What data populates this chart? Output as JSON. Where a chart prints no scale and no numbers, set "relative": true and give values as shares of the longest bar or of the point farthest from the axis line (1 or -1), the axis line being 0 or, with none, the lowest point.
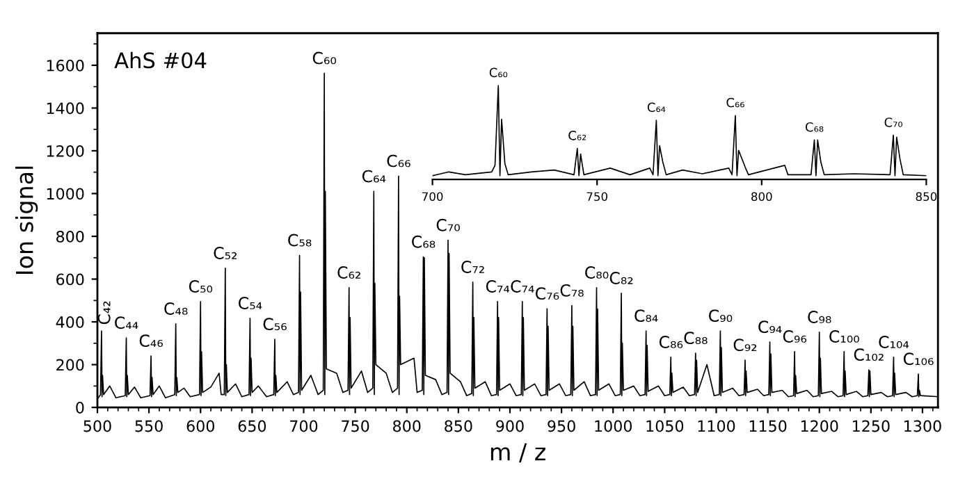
{
  "chart_data": [
    {
      "type": "line",
      "xlabel": "m / z",
      "ylabel": "Ion signal",
      "xlim": [
        500,
        1315
      ],
      "ylim": [
        0,
        1750
      ],
      "xticks": [
        500,
        550,
        600,
        650,
        700,
        750,
        800,
        850,
        900,
        950,
        1000,
        1050,
        1100,
        1150,
        1200,
        1250,
        1300
      ],
      "yticks": [
        0,
        200,
        400,
        600,
        800,
        1000,
        1200,
        1400,
        1600
      ],
      "series": [
        {
          "color": "#000000",
          "x": [
            500,
            503,
            504,
            504.5,
            505,
            506,
            512,
            518,
            527,
            528,
            528.5,
            529,
            530,
            536,
            542,
            551,
            552,
            552.5,
            553,
            554,
            560,
            566,
            575,
            576,
            576.5,
            577,
            578,
            584,
            590,
            599,
            600,
            600.5,
            601,
            602,
            610,
            618,
            620,
            623,
            624,
            624.5,
            625,
            626,
            634,
            640,
            647,
            648,
            648.5,
            649,
            650,
            656,
            664,
            671,
            672,
            672.5,
            673,
            674,
            684,
            690,
            695,
            696,
            696.5,
            697,
            698,
            707,
            714,
            719,
            720,
            720.5,
            721,
            722,
            732,
            738,
            743,
            744,
            744.5,
            745,
            746,
            756,
            762,
            767,
            768,
            768.5,
            769,
            770,
            780,
            786,
            791,
            792,
            792.5,
            793,
            794,
            807,
            810,
            815,
            816,
            816.5,
            817,
            818,
            828,
            834,
            839,
            840,
            840.5,
            841,
            842,
            852,
            858,
            863,
            864,
            864.5,
            865,
            866,
            876,
            882,
            887,
            888,
            888.5,
            889,
            890,
            900,
            906,
            911,
            912,
            912.5,
            913,
            914,
            924,
            930,
            935,
            936,
            936.5,
            937,
            938,
            948,
            954,
            959,
            960,
            960.5,
            961,
            962,
            972,
            978,
            983,
            984,
            984.5,
            985,
            986,
            996,
            1002,
            1007,
            1008,
            1008.5,
            1009,
            1010,
            1020,
            1026,
            1031,
            1032,
            1032.5,
            1033,
            1034,
            1044,
            1050,
            1055,
            1056,
            1056.5,
            1057,
            1058,
            1068,
            1074,
            1079,
            1080,
            1080.5,
            1081,
            1082,
            1091,
            1098,
            1103,
            1104,
            1104.5,
            1105,
            1106,
            1116,
            1122,
            1127,
            1128,
            1128.5,
            1129,
            1130,
            1140,
            1146,
            1151,
            1152,
            1152.5,
            1153,
            1154,
            1164,
            1170,
            1175,
            1176,
            1176.5,
            1177,
            1178,
            1188,
            1194,
            1199,
            1200,
            1200.5,
            1201,
            1202,
            1212,
            1218,
            1223,
            1224,
            1224.5,
            1225,
            1226,
            1236,
            1242,
            1247,
            1248,
            1248.5,
            1249,
            1250,
            1260,
            1266,
            1271,
            1272,
            1272.5,
            1273,
            1274,
            1284,
            1290,
            1295,
            1296,
            1296.5,
            1297,
            1298,
            1315
          ],
          "values": [
            40,
            60,
            358,
            50,
            150,
            60,
            100,
            45,
            55,
            325,
            50,
            150,
            60,
            95,
            45,
            55,
            241,
            50,
            140,
            60,
            100,
            45,
            60,
            391,
            55,
            140,
            70,
            90,
            50,
            60,
            495,
            55,
            260,
            70,
            95,
            160,
            60,
            60,
            651,
            55,
            200,
            70,
            110,
            50,
            60,
            417,
            55,
            230,
            70,
            100,
            50,
            60,
            319,
            55,
            150,
            70,
            120,
            60,
            70,
            711,
            60,
            540,
            80,
            150,
            60,
            80,
            1563,
            60,
            1010,
            180,
            160,
            70,
            80,
            560,
            60,
            420,
            90,
            170,
            70,
            90,
            1010,
            60,
            580,
            200,
            160,
            70,
            90,
            1082,
            60,
            520,
            200,
            230,
            70,
            80,
            704,
            60,
            700,
            150,
            130,
            60,
            70,
            782,
            60,
            720,
            160,
            120,
            55,
            65,
            586,
            55,
            420,
            90,
            120,
            55,
            60,
            495,
            55,
            420,
            80,
            110,
            55,
            60,
            495,
            55,
            420,
            80,
            110,
            55,
            60,
            462,
            55,
            380,
            80,
            110,
            55,
            60,
            476,
            55,
            380,
            80,
            120,
            55,
            60,
            560,
            55,
            460,
            80,
            110,
            55,
            60,
            534,
            55,
            300,
            80,
            100,
            55,
            60,
            358,
            55,
            290,
            75,
            100,
            55,
            60,
            235,
            55,
            160,
            70,
            95,
            55,
            60,
            254,
            55,
            220,
            70,
            200,
            55,
            60,
            358,
            55,
            280,
            70,
            90,
            55,
            60,
            221,
            55,
            170,
            70,
            85,
            55,
            60,
            306,
            55,
            250,
            70,
            80,
            50,
            55,
            261,
            50,
            150,
            65,
            80,
            50,
            55,
            352,
            50,
            230,
            65,
            75,
            50,
            55,
            261,
            50,
            170,
            60,
            75,
            50,
            55,
            176,
            50,
            170,
            60,
            70,
            50,
            55,
            235,
            50,
            160,
            60,
            70,
            50,
            55,
            156,
            50,
            80,
            55,
            50
          ]
        }
      ],
      "annotations": [
        "AhS #04",
        {
          "text": "C₄₂",
          "x": 504,
          "y": 358
        },
        {
          "text": "C₄₄",
          "x": 528,
          "y": 325
        },
        {
          "text": "C₄₆",
          "x": 552,
          "y": 241
        },
        {
          "text": "C₄₈",
          "x": 576,
          "y": 391
        },
        {
          "text": "C₅₀",
          "x": 600,
          "y": 495
        },
        {
          "text": "C₅₂",
          "x": 624,
          "y": 651
        },
        {
          "text": "C₅₄",
          "x": 648,
          "y": 417
        },
        {
          "text": "C₅₆",
          "x": 672,
          "y": 319
        },
        {
          "text": "C₅₈",
          "x": 696,
          "y": 711
        },
        {
          "text": "C₆₀",
          "x": 720,
          "y": 1563
        },
        {
          "text": "C₆₂",
          "x": 744,
          "y": 560
        },
        {
          "text": "C₆₄",
          "x": 768,
          "y": 1010
        },
        {
          "text": "C₆₆",
          "x": 792,
          "y": 1082
        },
        {
          "text": "C₆₈",
          "x": 816,
          "y": 704
        },
        {
          "text": "C₇₀",
          "x": 840,
          "y": 782
        },
        {
          "text": "C₇₂",
          "x": 864,
          "y": 586
        },
        {
          "text": "C₇₄",
          "x": 888,
          "y": 495
        },
        {
          "text": "C₇₄",
          "x": 912,
          "y": 495
        },
        {
          "text": "C₇₆",
          "x": 936,
          "y": 462
        },
        {
          "text": "C₇₈",
          "x": 960,
          "y": 476
        },
        {
          "text": "C₈₀",
          "x": 984,
          "y": 560
        },
        {
          "text": "C₈₂",
          "x": 1008,
          "y": 534
        },
        {
          "text": "C₈₄",
          "x": 1032,
          "y": 358
        },
        {
          "text": "C₈₆",
          "x": 1056,
          "y": 235
        },
        {
          "text": "C₈₈",
          "x": 1080,
          "y": 254
        },
        {
          "text": "C₉₀",
          "x": 1104,
          "y": 358
        },
        {
          "text": "C₉₂",
          "x": 1128,
          "y": 221
        },
        {
          "text": "C₉₄",
          "x": 1152,
          "y": 306
        },
        {
          "text": "C₉₆",
          "x": 1176,
          "y": 261
        },
        {
          "text": "C₉₈",
          "x": 1200,
          "y": 352
        },
        {
          "text": "C₁₀₀",
          "x": 1224,
          "y": 261
        },
        {
          "text": "C₁₀₂",
          "x": 1248,
          "y": 176
        },
        {
          "text": "C₁₀₄",
          "x": 1272,
          "y": 235
        },
        {
          "text": "C₁₀₆",
          "x": 1296,
          "y": 156
        }
      ]
    },
    {
      "type": "line",
      "relative": true,
      "tick_labels": "x",
      "xlim": [
        700,
        850
      ],
      "xticks": [
        700,
        750,
        800,
        850
      ],
      "series": [
        {
          "color": "#000000",
          "x": [
            700,
            705,
            710,
            718,
            719,
            720,
            720.5,
            721,
            722,
            723,
            730,
            737,
            743,
            744,
            744.5,
            745,
            746,
            754,
            760,
            766,
            767,
            768,
            768.5,
            769,
            770,
            771,
            776,
            782,
            790,
            791,
            792,
            792.5,
            793,
            794,
            795,
            796,
            807,
            808,
            815,
            816,
            816.5,
            817,
            818,
            819,
            828,
            839,
            840,
            840.5,
            841,
            842,
            843,
            850
          ],
          "values": [
            0.04,
            0.08,
            0.05,
            0.08,
            0.15,
            1.0,
            0.04,
            0.64,
            0.17,
            0.05,
            0.08,
            0.1,
            0.05,
            0.33,
            0.04,
            0.27,
            0.05,
            0.12,
            0.05,
            0.12,
            0.05,
            0.63,
            0.04,
            0.36,
            0.18,
            0.05,
            0.1,
            0.06,
            0.12,
            0.05,
            0.68,
            0.04,
            0.31,
            0.22,
            0.13,
            0.05,
            0.15,
            0.05,
            0.05,
            0.42,
            0.04,
            0.42,
            0.18,
            0.05,
            0.06,
            0.05,
            0.47,
            0.04,
            0.45,
            0.22,
            0.05,
            0.04
          ]
        }
      ],
      "annotations": [
        {
          "text": "C₆₀",
          "x": 720,
          "y": 1.0
        },
        {
          "text": "C₆₂",
          "x": 744,
          "y": 0.33
        },
        {
          "text": "C₆₄",
          "x": 768,
          "y": 0.63
        },
        {
          "text": "C₆₆",
          "x": 792,
          "y": 0.68
        },
        {
          "text": "C₆₈",
          "x": 816,
          "y": 0.42
        },
        {
          "text": "C₇₀",
          "x": 840,
          "y": 0.47
        }
      ]
    }
  ]
}
